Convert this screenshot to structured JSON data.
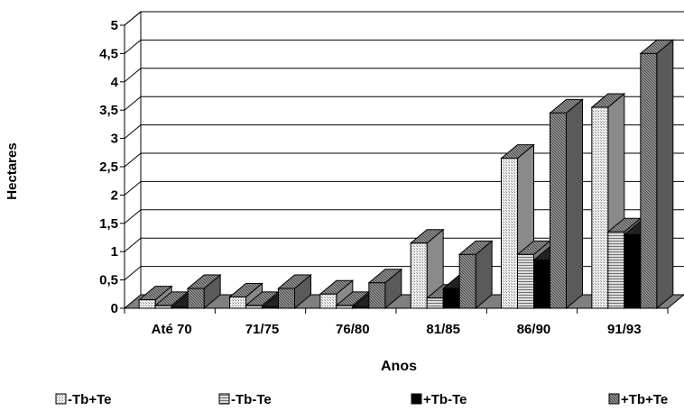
{
  "chart_data": {
    "type": "bar",
    "title": "",
    "xlabel": "Anos",
    "ylabel": "Hectares",
    "ylim": [
      0,
      5
    ],
    "yticks": [
      "0",
      "0,5",
      "1",
      "1,5",
      "2",
      "2,5",
      "3",
      "3,5",
      "4",
      "4,5",
      "5"
    ],
    "categories": [
      "Até 70",
      "71/75",
      "76/80",
      "81/85",
      "86/90",
      "91/93"
    ],
    "series": [
      {
        "name": "-Tb+Te",
        "values": [
          0.15,
          0.2,
          0.25,
          1.15,
          2.65,
          3.55
        ]
      },
      {
        "name": "-Tb-Te",
        "values": [
          0.05,
          0.05,
          0.05,
          0.18,
          0.95,
          1.35
        ]
      },
      {
        "name": "+Tb-Te",
        "values": [
          0.02,
          0.02,
          0.02,
          0.35,
          0.85,
          1.3
        ]
      },
      {
        "name": "+Tb+Te",
        "values": [
          0.35,
          0.35,
          0.45,
          0.95,
          3.45,
          4.5
        ]
      }
    ],
    "grid": true,
    "legend_position": "bottom",
    "style": "3d-clustered-bar"
  }
}
